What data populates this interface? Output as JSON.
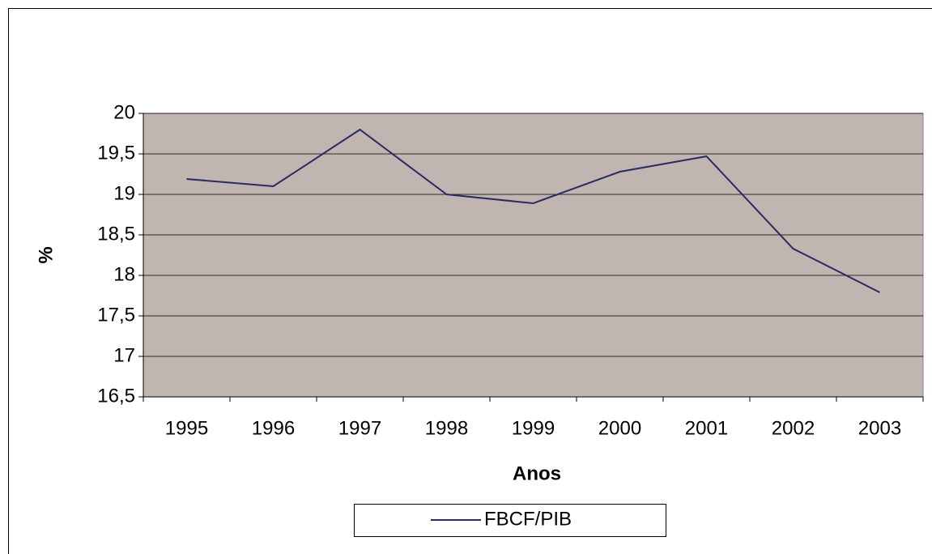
{
  "chart_data": {
    "type": "line",
    "categories": [
      "1995",
      "1996",
      "1997",
      "1998",
      "1999",
      "2000",
      "2001",
      "2002",
      "2003"
    ],
    "series": [
      {
        "name": "FBCF/PIB",
        "color": "#2b2a63",
        "values": [
          19.19,
          19.1,
          19.8,
          19.0,
          18.89,
          19.28,
          19.47,
          18.33,
          17.79
        ]
      }
    ],
    "xlabel": "Anos",
    "ylabel": "%",
    "ylim": [
      16.5,
      20
    ],
    "yticks": [
      {
        "value": 16.5,
        "label": "16,5"
      },
      17,
      {
        "value": 17.5,
        "label": "17,5"
      },
      18,
      {
        "value": 18.5,
        "label": "18,5"
      },
      19,
      {
        "value": 19.5,
        "label": "19,5"
      },
      20
    ],
    "grid": true,
    "plot_background": "#c0b5b1",
    "legend": "bottom"
  }
}
